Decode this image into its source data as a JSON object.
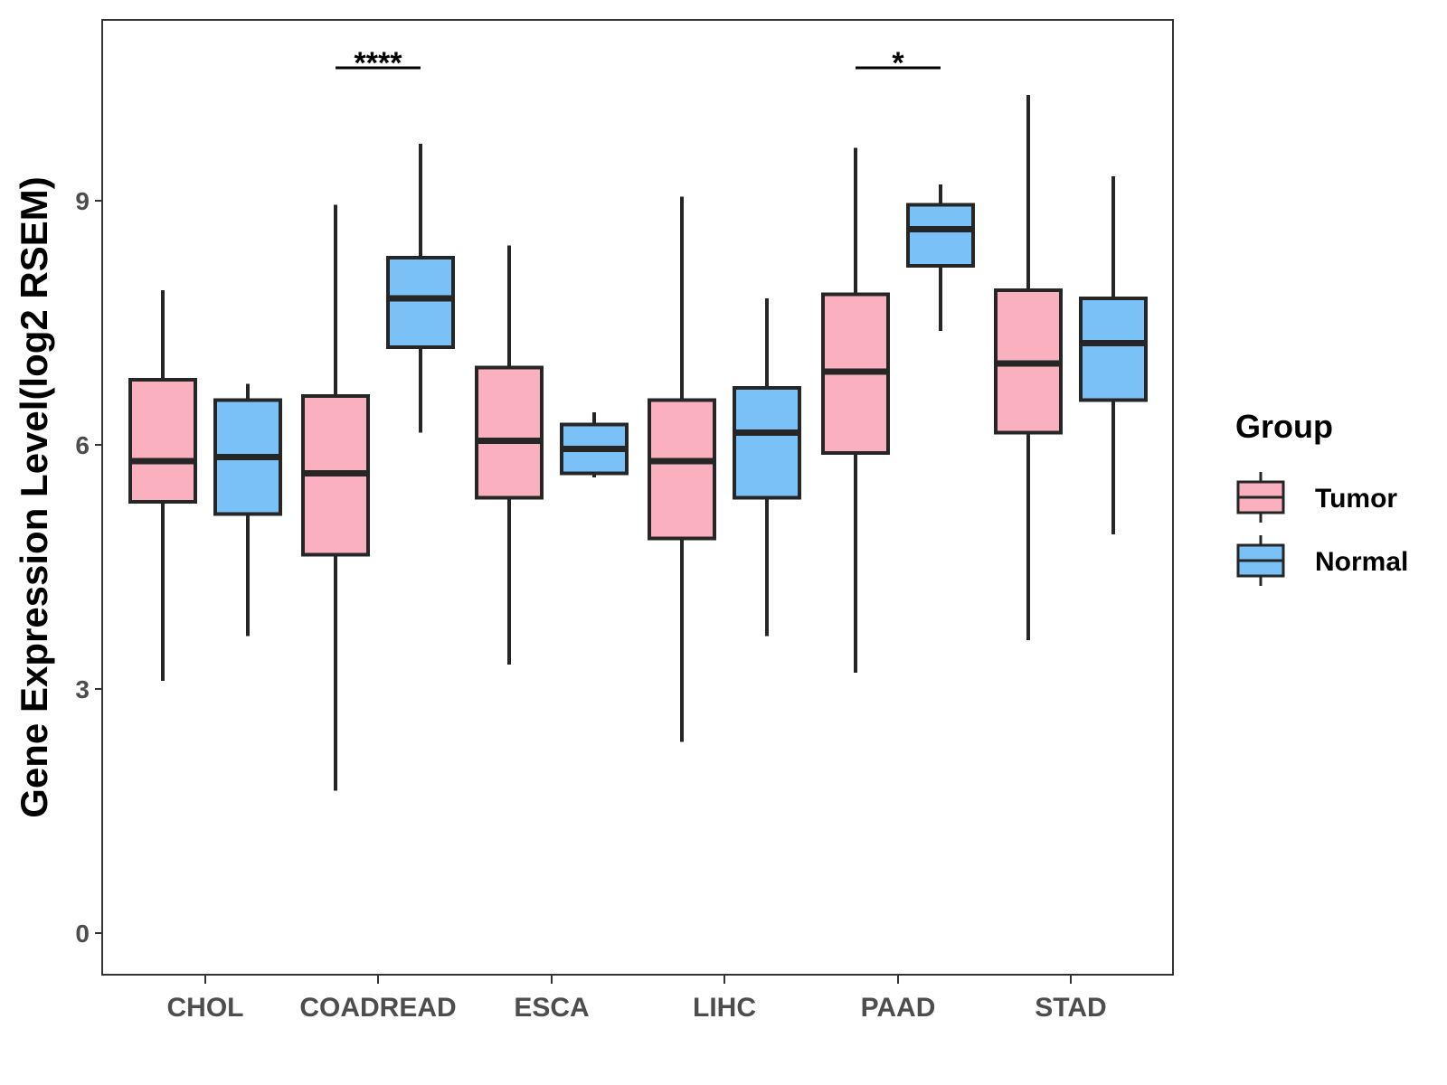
{
  "chart_data": {
    "type": "boxplot",
    "title": "",
    "xlabel": "",
    "ylabel": "Gene Expression Level(log2 RSEM)",
    "ylim": [
      -0.5,
      11.25
    ],
    "yticks": [
      0,
      3,
      6,
      9
    ],
    "categories": [
      "CHOL",
      "COADREAD",
      "ESCA",
      "LIHC",
      "PAAD",
      "STAD"
    ],
    "legend": {
      "title": "Group",
      "position": "right",
      "entries": [
        {
          "name": "Tumor",
          "color": "#fbb0c0"
        },
        {
          "name": "Normal",
          "color": "#7ac1f8"
        }
      ]
    },
    "series": [
      {
        "name": "Tumor",
        "color": "#fbb0c0",
        "boxes": [
          {
            "category": "CHOL",
            "min": 3.1,
            "q1": 5.3,
            "median": 5.8,
            "q3": 6.8,
            "max": 7.9
          },
          {
            "category": "COADREAD",
            "min": 1.75,
            "q1": 4.65,
            "median": 5.65,
            "q3": 6.6,
            "max": 8.95
          },
          {
            "category": "ESCA",
            "min": 3.3,
            "q1": 5.35,
            "median": 6.05,
            "q3": 6.95,
            "max": 8.45
          },
          {
            "category": "LIHC",
            "min": 2.35,
            "q1": 4.85,
            "median": 5.8,
            "q3": 6.55,
            "max": 9.05
          },
          {
            "category": "PAAD",
            "min": 3.2,
            "q1": 5.9,
            "median": 6.9,
            "q3": 7.85,
            "max": 9.65
          },
          {
            "category": "STAD",
            "min": 3.6,
            "q1": 6.15,
            "median": 7.0,
            "q3": 7.9,
            "max": 10.3
          }
        ]
      },
      {
        "name": "Normal",
        "color": "#7ac1f8",
        "boxes": [
          {
            "category": "CHOL",
            "min": 3.65,
            "q1": 5.15,
            "median": 5.85,
            "q3": 6.55,
            "max": 6.75
          },
          {
            "category": "COADREAD",
            "min": 6.15,
            "q1": 7.2,
            "median": 7.8,
            "q3": 8.3,
            "max": 9.7
          },
          {
            "category": "ESCA",
            "min": 5.6,
            "q1": 5.65,
            "median": 5.95,
            "q3": 6.25,
            "max": 6.4
          },
          {
            "category": "LIHC",
            "min": 3.65,
            "q1": 5.35,
            "median": 6.15,
            "q3": 6.7,
            "max": 7.8
          },
          {
            "category": "PAAD",
            "min": 7.4,
            "q1": 8.2,
            "median": 8.65,
            "q3": 8.95,
            "max": 9.2
          },
          {
            "category": "STAD",
            "min": 4.9,
            "q1": 6.55,
            "median": 7.25,
            "q3": 7.8,
            "max": 9.3
          }
        ]
      }
    ],
    "annotations": [
      {
        "category": "COADREAD",
        "label": "****",
        "y": 10.6
      },
      {
        "category": "PAAD",
        "label": "*",
        "y": 10.6
      }
    ],
    "grid": false
  }
}
